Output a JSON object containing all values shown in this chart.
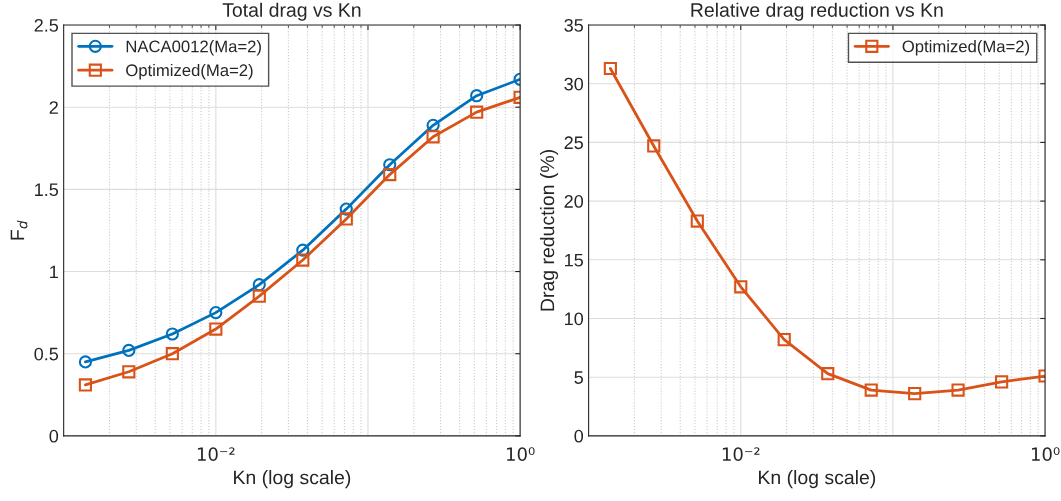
{
  "chart_data": [
    {
      "type": "line",
      "title": "Total drag vs Kn",
      "xlabel": "Kn (log scale)",
      "ylabel": "F$_{d}$",
      "log": "x",
      "x": [
        0.00139,
        0.00268,
        0.00518,
        0.01,
        0.0193,
        0.0373,
        0.072,
        0.139,
        0.268,
        0.518,
        1
      ],
      "xlim": [
        0.001,
        1
      ],
      "xticks": [
        {
          "value": 0.01,
          "label": "10⁻²"
        },
        {
          "value": 0.1,
          "label": null
        },
        {
          "value": 1,
          "label": "10⁰"
        }
      ],
      "ylim": [
        0,
        2.5
      ],
      "yticks": [
        0,
        0.5,
        1,
        1.5,
        2,
        2.5
      ],
      "grid": true,
      "legend": "top left",
      "series": [
        {
          "name": "NACA0012(Ma=2)",
          "color": "#0072bd",
          "marker": "circle",
          "values": [
            0.45,
            0.52,
            0.62,
            0.75,
            0.92,
            1.13,
            1.38,
            1.65,
            1.89,
            2.07,
            2.17
          ]
        },
        {
          "name": "Optimized(Ma=2)",
          "color": "#d95319",
          "marker": "square",
          "values": [
            0.31,
            0.39,
            0.5,
            0.65,
            0.85,
            1.07,
            1.32,
            1.59,
            1.82,
            1.97,
            2.06
          ]
        }
      ]
    },
    {
      "type": "line",
      "title": "Relative drag reduction vs Kn",
      "xlabel": "Kn (log scale)",
      "ylabel": "Drag reduction (%)",
      "log": "x",
      "x": [
        0.00139,
        0.00268,
        0.00518,
        0.01,
        0.0193,
        0.0373,
        0.072,
        0.139,
        0.268,
        0.518,
        1
      ],
      "xlim": [
        0.001,
        1
      ],
      "xticks": [
        {
          "value": 0.01,
          "label": "10⁻²"
        },
        {
          "value": 0.1,
          "label": null
        },
        {
          "value": 1,
          "label": "10⁰"
        }
      ],
      "ylim": [
        0,
        35
      ],
      "yticks": [
        0,
        5,
        10,
        15,
        20,
        25,
        30,
        35
      ],
      "grid": true,
      "legend": "top right",
      "series": [
        {
          "name": "Optimized(Ma=2)",
          "color": "#d95319",
          "marker": "square",
          "values": [
            31.3,
            24.7,
            18.3,
            12.7,
            8.2,
            5.3,
            3.9,
            3.6,
            3.9,
            4.6,
            5.1
          ]
        }
      ]
    }
  ]
}
